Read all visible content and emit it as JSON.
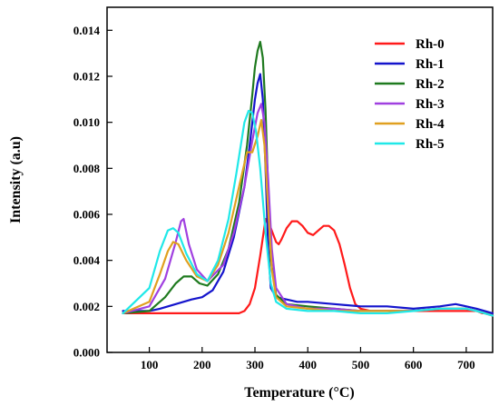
{
  "chart_data": {
    "type": "line",
    "title": "",
    "xlabel": "Temperature (°C)",
    "ylabel": "Intensity (a.u)",
    "xlim": [
      20,
      750
    ],
    "ylim": [
      0,
      0.015
    ],
    "x_ticks": [
      100,
      200,
      300,
      400,
      500,
      600,
      700
    ],
    "x_tick_labels": [
      "100",
      "200",
      "300",
      "400",
      "500",
      "600",
      "700"
    ],
    "y_ticks": [
      0.0,
      0.002,
      0.004,
      0.006,
      0.008,
      0.01,
      0.012,
      0.014
    ],
    "y_tick_labels": [
      "0.000",
      "0.002",
      "0.004",
      "0.006",
      "0.008",
      "0.010",
      "0.012",
      "0.014"
    ],
    "grid": false,
    "legend_position": "top-right",
    "series": [
      {
        "name": "Rh-0",
        "color": "#ff1a1a",
        "x": [
          50,
          100,
          150,
          200,
          250,
          270,
          280,
          290,
          300,
          310,
          320,
          330,
          340,
          345,
          350,
          360,
          370,
          380,
          390,
          400,
          410,
          420,
          430,
          440,
          450,
          460,
          470,
          480,
          490,
          500,
          520,
          550,
          600,
          650,
          700,
          720,
          730,
          750
        ],
        "y": [
          0.0017,
          0.0017,
          0.0017,
          0.0017,
          0.0017,
          0.0017,
          0.0018,
          0.0021,
          0.0028,
          0.0042,
          0.0058,
          0.0054,
          0.0048,
          0.0047,
          0.0049,
          0.0054,
          0.0057,
          0.0057,
          0.0055,
          0.0052,
          0.0051,
          0.0053,
          0.0055,
          0.0055,
          0.0053,
          0.0047,
          0.0038,
          0.0028,
          0.0021,
          0.0019,
          0.0018,
          0.0018,
          0.0018,
          0.0018,
          0.0018,
          0.0018,
          0.0017,
          0.0017
        ]
      },
      {
        "name": "Rh-1",
        "color": "#1414cc",
        "x": [
          50,
          100,
          120,
          150,
          180,
          200,
          220,
          240,
          260,
          280,
          290,
          300,
          305,
          310,
          315,
          320,
          325,
          330,
          340,
          360,
          380,
          400,
          450,
          500,
          550,
          600,
          650,
          680,
          700,
          720,
          750
        ],
        "y": [
          0.0018,
          0.0018,
          0.0019,
          0.0021,
          0.0023,
          0.0024,
          0.0027,
          0.0035,
          0.005,
          0.0072,
          0.009,
          0.011,
          0.0117,
          0.0121,
          0.011,
          0.008,
          0.0045,
          0.0028,
          0.0024,
          0.0023,
          0.0022,
          0.0022,
          0.0021,
          0.002,
          0.002,
          0.0019,
          0.002,
          0.0021,
          0.002,
          0.0019,
          0.0017
        ]
      },
      {
        "name": "Rh-2",
        "color": "#1f7a1f",
        "x": [
          50,
          100,
          130,
          150,
          165,
          180,
          195,
          210,
          230,
          250,
          270,
          285,
          295,
          300,
          305,
          310,
          315,
          320,
          325,
          330,
          340,
          360,
          400,
          450,
          500,
          550,
          600,
          650,
          700,
          720,
          750
        ],
        "y": [
          0.0017,
          0.0018,
          0.0024,
          0.003,
          0.0033,
          0.0033,
          0.003,
          0.0029,
          0.0034,
          0.0045,
          0.0065,
          0.009,
          0.0112,
          0.0124,
          0.0131,
          0.0135,
          0.0128,
          0.0105,
          0.007,
          0.004,
          0.0025,
          0.0021,
          0.002,
          0.0019,
          0.0018,
          0.0018,
          0.0018,
          0.0019,
          0.0019,
          0.0018,
          0.0016
        ]
      },
      {
        "name": "Rh-3",
        "color": "#a040e0",
        "x": [
          50,
          100,
          130,
          150,
          160,
          165,
          175,
          190,
          210,
          240,
          260,
          280,
          295,
          305,
          312,
          318,
          325,
          332,
          340,
          360,
          400,
          450,
          500,
          550,
          600,
          650,
          700,
          720,
          750
        ],
        "y": [
          0.0017,
          0.002,
          0.0032,
          0.0048,
          0.0057,
          0.0058,
          0.0047,
          0.0036,
          0.0031,
          0.0038,
          0.0052,
          0.0072,
          0.0092,
          0.0104,
          0.0108,
          0.01,
          0.0075,
          0.0045,
          0.0028,
          0.0021,
          0.0019,
          0.0019,
          0.0018,
          0.0018,
          0.0018,
          0.0019,
          0.0019,
          0.0018,
          0.0016
        ]
      },
      {
        "name": "Rh-4",
        "color": "#e0a020",
        "x": [
          50,
          100,
          120,
          135,
          145,
          155,
          170,
          190,
          210,
          230,
          250,
          270,
          285,
          295,
          305,
          312,
          318,
          325,
          332,
          340,
          360,
          400,
          450,
          500,
          550,
          600,
          650,
          700,
          720,
          750
        ],
        "y": [
          0.0017,
          0.0022,
          0.0034,
          0.0044,
          0.0048,
          0.0047,
          0.004,
          0.0033,
          0.0031,
          0.0038,
          0.0052,
          0.0072,
          0.0087,
          0.0087,
          0.0094,
          0.0101,
          0.009,
          0.0062,
          0.0036,
          0.0024,
          0.002,
          0.0019,
          0.0018,
          0.0018,
          0.0018,
          0.0018,
          0.0019,
          0.0019,
          0.0018,
          0.0016
        ]
      },
      {
        "name": "Rh-5",
        "color": "#20e8e8",
        "x": [
          50,
          100,
          120,
          135,
          145,
          155,
          170,
          190,
          210,
          230,
          250,
          265,
          280,
          288,
          295,
          302,
          310,
          320,
          330,
          340,
          360,
          400,
          450,
          500,
          550,
          600,
          650,
          700,
          720,
          750
        ],
        "y": [
          0.0017,
          0.0028,
          0.0044,
          0.0053,
          0.0054,
          0.0052,
          0.0043,
          0.0034,
          0.0031,
          0.004,
          0.0058,
          0.0078,
          0.01,
          0.0105,
          0.0104,
          0.0096,
          0.008,
          0.0052,
          0.003,
          0.0022,
          0.0019,
          0.0018,
          0.0018,
          0.0017,
          0.0017,
          0.0018,
          0.0019,
          0.0019,
          0.0018,
          0.0016
        ]
      }
    ]
  }
}
